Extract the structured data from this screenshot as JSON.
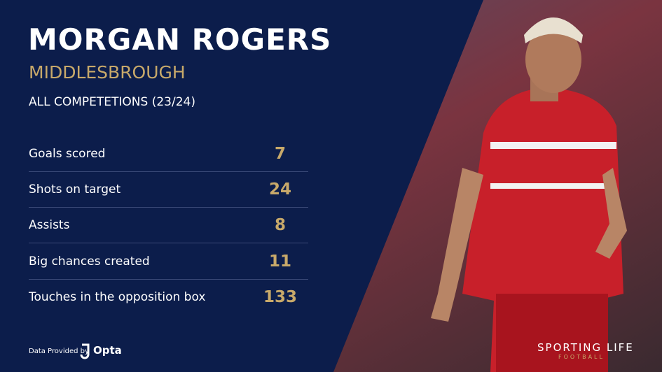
{
  "header": {
    "title": "MORGAN ROGERS",
    "club": "MIDDLESBROUGH",
    "competition": "ALL COMPETETIONS (23/24)"
  },
  "stats": [
    {
      "label": "Goals scored",
      "value": 7
    },
    {
      "label": "Shots on target",
      "value": 24
    },
    {
      "label": "Assists",
      "value": 8
    },
    {
      "label": "Big chances created",
      "value": 11
    },
    {
      "label": "Touches in the opposition box",
      "value": 133
    }
  ],
  "footer": {
    "provider_text": "Data Provided by",
    "provider": "Opta",
    "brand": "SPORTING LIFE",
    "brand_sub": "FOOTBALL"
  }
}
